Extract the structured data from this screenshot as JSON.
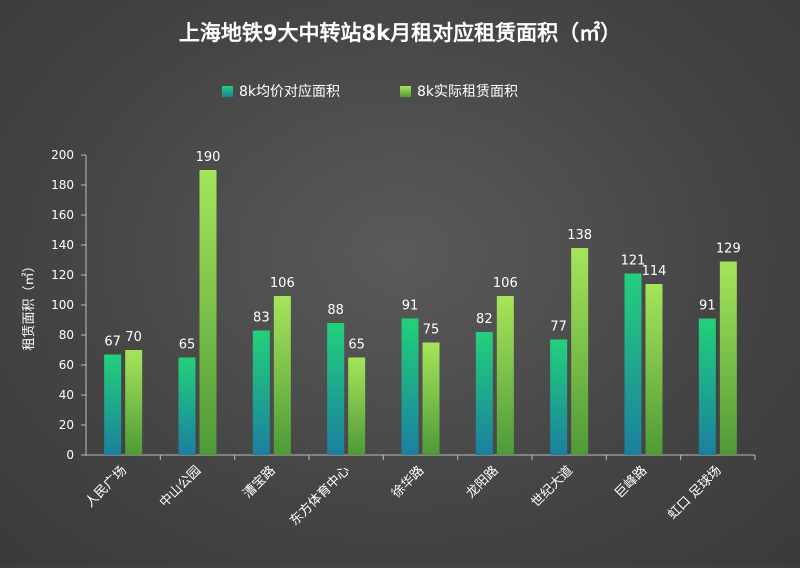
{
  "chart_data": {
    "type": "bar",
    "title": "上海地铁9大中转站8k月租对应租赁面积（㎡）",
    "ylabel": "租赁面积（㎡）",
    "xlabel": "",
    "categories": [
      "人民广场",
      "中山公园",
      "漕宝路",
      "东方体育中心",
      "徐华路",
      "龙阳路",
      "世纪大道",
      "巨峰路",
      "虹口 足球场"
    ],
    "series": [
      {
        "name": "8k均价对应面积",
        "values": [
          67,
          65,
          83,
          88,
          91,
          82,
          77,
          121,
          91
        ]
      },
      {
        "name": "8k实际租赁面积",
        "values": [
          70,
          190,
          106,
          65,
          75,
          106,
          138,
          114,
          129
        ]
      }
    ],
    "ylim": [
      0,
      200
    ],
    "yticks": [
      0,
      20,
      40,
      60,
      80,
      100,
      120,
      140,
      160,
      180,
      200
    ],
    "legend_position": "top",
    "grid": false,
    "colors": {
      "series1_top": "#22d17a",
      "series1_bottom": "#1b7fa0",
      "series2_top": "#a6e55a",
      "series2_bottom": "#4f9a38",
      "text": "#ffffff",
      "axis": "#bdbdbd"
    }
  }
}
